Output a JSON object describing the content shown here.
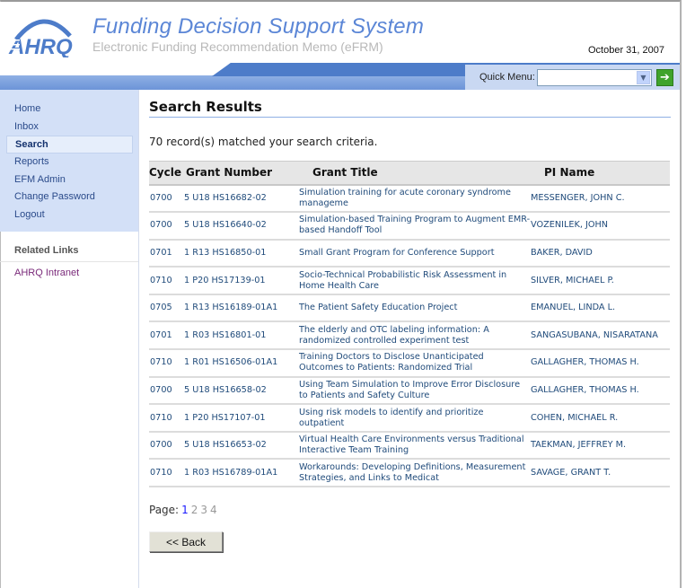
{
  "header": {
    "logo_text": "AHRQ",
    "title": "Funding Decision Support System",
    "subtitle": "Electronic Funding Recommendation Memo (eFRM)",
    "date": "October 31, 2007"
  },
  "quick_menu": {
    "label": "Quick Menu:",
    "value": "",
    "go_icon": "arrow-right-icon"
  },
  "sidebar": {
    "items": [
      {
        "label": "Home"
      },
      {
        "label": "Inbox"
      },
      {
        "label": "Search",
        "active": true
      },
      {
        "label": "Reports"
      },
      {
        "label": "EFM Admin"
      },
      {
        "label": "Change Password"
      },
      {
        "label": "Logout"
      }
    ],
    "related_heading": "Related Links",
    "related_links": [
      {
        "label": "AHRQ Intranet"
      }
    ]
  },
  "main": {
    "title": "Search Results",
    "count_text": "70 record(s) matched your search criteria.",
    "columns": [
      "Cycle",
      "Grant Number",
      "Grant Title",
      "PI Name"
    ],
    "rows": [
      [
        "0700",
        "5 U18 HS16682-02",
        "Simulation training for acute coronary syndrome manageme",
        "MESSENGER, JOHN C."
      ],
      [
        "0700",
        "5 U18 HS16640-02",
        "Simulation-based Training Program to Augment EMR-based Handoff Tool",
        "VOZENILEK, JOHN"
      ],
      [
        "0701",
        "1 R13 HS16850-01",
        "Small Grant Program for Conference Support",
        "BAKER, DAVID"
      ],
      [
        "0710",
        "1 P20 HS17139-01",
        "Socio-Technical Probabilistic Risk Assessment in Home Health Care",
        "SILVER, MICHAEL P."
      ],
      [
        "0705",
        "1 R13 HS16189-01A1",
        "The Patient Safety Education Project",
        "EMANUEL, LINDA L."
      ],
      [
        "0701",
        "1 R03 HS16801-01",
        "The elderly and OTC labeling information: A randomized controlled experiment test",
        "SANGASUBANA, NISARATANA"
      ],
      [
        "0710",
        "1 R01 HS16506-01A1",
        "Training Doctors to Disclose Unanticipated Outcomes to Patients: Randomized Trial",
        "GALLAGHER, THOMAS H."
      ],
      [
        "0700",
        "5 U18 HS16658-02",
        "Using Team Simulation to Improve Error Disclosure to Patients and Safety Culture",
        "GALLAGHER, THOMAS H."
      ],
      [
        "0710",
        "1 P20 HS17107-01",
        "Using risk models to identify and prioritize outpatient",
        "COHEN, MICHAEL R."
      ],
      [
        "0700",
        "5 U18 HS16653-02",
        "Virtual Health Care Environments versus Traditional Interactive Team Training",
        "TAEKMAN, JEFFREY M."
      ],
      [
        "0710",
        "1 R03 HS16789-01A1",
        "Workarounds: Developing Definitions, Measurement Strategies, and Links to Medicat",
        "SAVAGE, GRANT T."
      ]
    ],
    "pager": {
      "label": "Page:",
      "pages": [
        "1",
        "2",
        "3",
        "4"
      ],
      "current": "1"
    },
    "back_label": "<< Back"
  },
  "colors": {
    "accent": "#4d7cc9",
    "title": "#5b86d6",
    "current_page": "#1a1aff",
    "other_page": "#999999",
    "link": "#1f4a7a"
  }
}
